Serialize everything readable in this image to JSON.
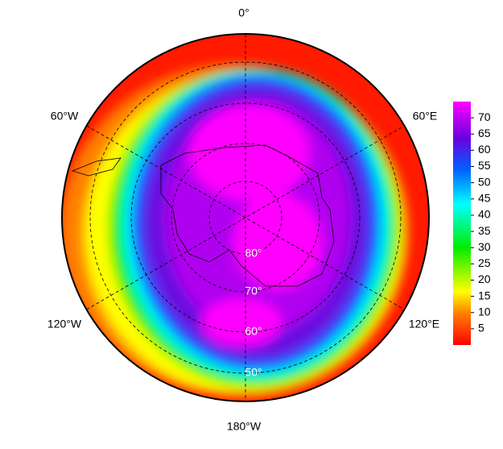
{
  "map": {
    "longitude_labels": [
      "0°",
      "60°E",
      "120°E",
      "180°W",
      "120°W",
      "60°W"
    ],
    "latitude_labels": [
      "80°",
      "70°",
      "60°",
      "50°"
    ],
    "colorbar": {
      "lim": [
        0,
        75
      ],
      "ticks": [
        5,
        10,
        15,
        20,
        25,
        30,
        35,
        40,
        45,
        50,
        55,
        60,
        65,
        70
      ]
    }
  }
}
